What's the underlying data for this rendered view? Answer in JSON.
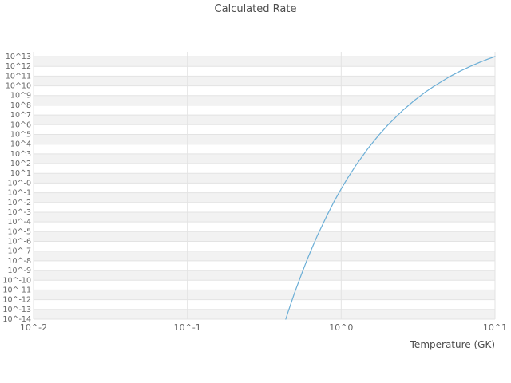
{
  "chart_data": {
    "type": "line",
    "title": "Calculated Rate",
    "xlabel": "Temperature (GK)",
    "ylabel": "",
    "x_scale": "log",
    "y_scale": "log",
    "xlim": [
      0.01,
      10
    ],
    "ylim_exp": [
      -14,
      13
    ],
    "grid": true,
    "legend": "none",
    "x_ticks": [
      {
        "label": "10^-2",
        "value": 0.01
      },
      {
        "label": "10^-1",
        "value": 0.1
      },
      {
        "label": "10^0",
        "value": 1
      },
      {
        "label": "10^1",
        "value": 10
      }
    ],
    "y_ticks": [
      "10^13",
      "10^12",
      "10^11",
      "10^10",
      "10^9",
      "10^8",
      "10^7",
      "10^6",
      "10^5",
      "10^4",
      "10^3",
      "10^2",
      "10^1",
      "10^-0",
      "10^-1",
      "10^-2",
      "10^-3",
      "10^-4",
      "10^-5",
      "10^-6",
      "10^-7",
      "10^-8",
      "10^-9",
      "10^-10",
      "10^-11",
      "10^-12",
      "10^-13",
      "10^-14"
    ],
    "colors": {
      "line": "#6baed6",
      "grid": "#e3e3e3",
      "band": "#f2f2f2",
      "tick_text": "#666666",
      "title_text": "#4d4d4d"
    },
    "series": [
      {
        "name": "calculated-rate",
        "color": "#6baed6",
        "points": [
          [
            0.436,
            1e-14
          ],
          [
            0.45,
            4.7e-14
          ],
          [
            0.5,
            6.3e-12
          ],
          [
            0.55,
            3.6e-10
          ],
          [
            0.6,
            1.3e-08
          ],
          [
            0.65,
            2.6e-07
          ],
          [
            0.7,
            4e-06
          ],
          [
            0.8,
            0.00034
          ],
          [
            0.9,
            0.013
          ],
          [
            1.0,
            0.25
          ],
          [
            1.1,
            3.2
          ],
          [
            1.25,
            72
          ],
          [
            1.5,
            4000.0
          ],
          [
            1.75,
            81000.0
          ],
          [
            2.0,
            850000.0
          ],
          [
            2.5,
            28000000.0
          ],
          [
            3.0,
            330000000.0
          ],
          [
            3.5,
            2100000000.0
          ],
          [
            4.0,
            8900000000.0
          ],
          [
            5.0,
            78000000000.0
          ],
          [
            6.0,
            350000000000.0
          ],
          [
            7.0,
            1100000000000.0
          ],
          [
            8.0,
            2700000000000.0
          ],
          [
            9.0,
            5600000000000.0
          ],
          [
            10.0,
            10000000000000.0
          ]
        ]
      }
    ]
  }
}
